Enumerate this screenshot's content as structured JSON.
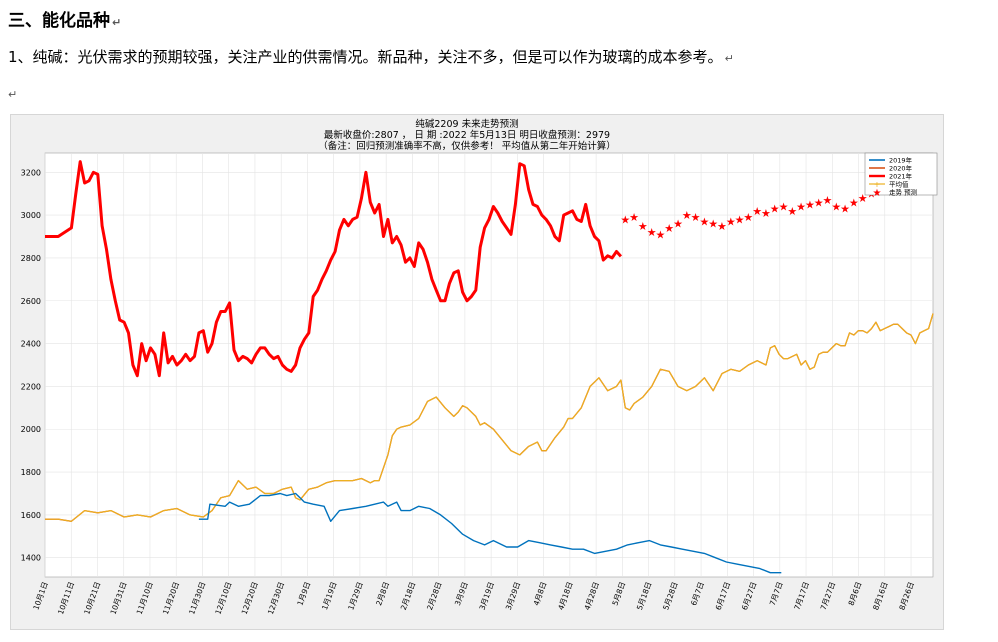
{
  "document": {
    "heading": "三、能化品种",
    "paragraph": "1、纯碱：光伏需求的预期较强，关注产业的供需情况。新品种，关注不多，但是可以作为玻璃的成本参考。",
    "para_mark": "↵"
  },
  "chart_data": {
    "type": "line",
    "title": "纯碱2209     未来走势预测",
    "subtitle": "最新收盘价:2807 ， 日 期 :2022 年5月13日   明日收盘预测：2979",
    "note": "（备注：回归预测准确率不高，仅供参考！ 平均值从第二年开始计算）",
    "ylim": [
      1310,
      3290
    ],
    "yticks": [
      1400,
      1600,
      1800,
      2000,
      2200,
      2400,
      2600,
      2800,
      3000,
      3200
    ],
    "xticks": [
      "10月1日",
      "10月11日",
      "10月21日",
      "10月31日",
      "11月10日",
      "11月20日",
      "11月30日",
      "12月10日",
      "12月20日",
      "12月30日",
      "1月9日",
      "1月19日",
      "1月29日",
      "2月8日",
      "2月18日",
      "2月28日",
      "3月9日",
      "3月19日",
      "3月29日",
      "4月8日",
      "4月18日",
      "4月28日",
      "5月8日",
      "5月18日",
      "5月28日",
      "6月7日",
      "6月17日",
      "6月27日",
      "7月7日",
      "7月17日",
      "7月27日",
      "8月6日",
      "8月16日",
      "8月26日"
    ],
    "legend_position": "top-right",
    "colors": {
      "s2019": "#0072bd",
      "s2020": "#d95319",
      "s2021": "#ff0000",
      "average": "#edb120",
      "forecast": "#ff0000"
    },
    "series": [
      {
        "name": "2019年",
        "x": [
          70,
          74,
          75,
          82,
          84,
          88,
          93,
          98,
          102,
          107,
          110,
          114,
          116,
          118,
          122,
          127,
          130,
          134,
          140,
          146,
          150,
          154,
          156,
          160,
          162,
          166,
          170,
          175,
          180,
          185,
          190,
          195,
          200,
          204,
          210,
          215,
          220,
          225,
          230,
          235,
          240,
          245,
          250,
          255,
          260,
          265,
          270,
          275,
          280,
          285,
          290,
          295,
          300,
          305,
          310,
          315,
          320,
          325,
          330,
          335
        ],
        "values": [
          1580,
          1580,
          1650,
          1640,
          1660,
          1640,
          1650,
          1690,
          1690,
          1700,
          1690,
          1700,
          1680,
          1660,
          1650,
          1640,
          1570,
          1620,
          1630,
          1640,
          1650,
          1660,
          1640,
          1660,
          1620,
          1620,
          1640,
          1630,
          1600,
          1560,
          1510,
          1480,
          1460,
          1480,
          1450,
          1450,
          1480,
          1470,
          1460,
          1450,
          1440,
          1440,
          1420,
          1430,
          1440,
          1460,
          1470,
          1480,
          1460,
          1450,
          1440,
          1430,
          1420,
          1400,
          1380,
          1370,
          1360,
          1350,
          1330,
          1330
        ]
      },
      {
        "name": "2020年",
        "x": [
          0,
          6,
          12,
          18,
          24,
          30,
          36,
          42,
          48,
          54,
          60,
          66,
          72,
          76,
          80,
          84,
          88,
          92,
          96,
          100,
          104,
          108,
          112,
          114,
          116,
          120,
          124,
          128,
          132,
          136,
          140,
          144,
          148,
          150,
          152,
          156,
          158,
          160,
          162,
          166,
          170,
          174,
          178,
          182,
          186,
          188,
          190,
          192,
          196,
          198,
          200,
          204,
          208,
          212,
          216,
          220,
          224,
          226,
          228,
          232,
          236,
          238,
          240,
          244,
          248,
          252,
          256,
          260,
          262,
          264,
          266,
          268,
          272,
          276,
          280,
          284,
          288,
          292,
          296,
          300,
          304,
          308,
          312,
          316,
          320,
          324,
          328,
          330,
          332,
          334,
          336,
          338,
          340,
          342,
          344,
          346,
          348,
          350,
          352,
          354,
          356,
          358,
          360,
          362,
          364,
          366,
          368,
          370,
          372,
          374,
          376,
          378,
          380,
          382,
          384,
          386,
          388,
          390,
          392,
          394,
          396,
          398,
          400,
          402,
          404
        ],
        "values": [
          1580,
          1580,
          1570,
          1620,
          1610,
          1620,
          1590,
          1600,
          1590,
          1620,
          1630,
          1600,
          1590,
          1620,
          1680,
          1690,
          1760,
          1720,
          1730,
          1700,
          1700,
          1720,
          1730,
          1680,
          1670,
          1720,
          1730,
          1750,
          1760,
          1760,
          1760,
          1770,
          1750,
          1760,
          1760,
          1880,
          1970,
          2000,
          2010,
          2020,
          2050,
          2130,
          2150,
          2100,
          2060,
          2080,
          2110,
          2100,
          2060,
          2020,
          2030,
          2000,
          1950,
          1900,
          1880,
          1920,
          1940,
          1900,
          1900,
          1960,
          2010,
          2050,
          2050,
          2100,
          2200,
          2240,
          2180,
          2200,
          2230,
          2100,
          2090,
          2120,
          2150,
          2200,
          2280,
          2270,
          2200,
          2180,
          2200,
          2240,
          2180,
          2260,
          2280,
          2270,
          2300,
          2320,
          2300,
          2380,
          2390,
          2350,
          2330,
          2330,
          2340,
          2350,
          2300,
          2320,
          2280,
          2290,
          2350,
          2360,
          2360,
          2380,
          2400,
          2390,
          2390,
          2450,
          2440,
          2460,
          2460,
          2450,
          2470,
          2500,
          2460,
          2470,
          2480,
          2490,
          2490,
          2470,
          2450,
          2440,
          2400,
          2450,
          2460,
          2470,
          2540
        ]
      },
      {
        "name": "2021年",
        "x": [
          0,
          6,
          12,
          14,
          16,
          18,
          20,
          22,
          24,
          26,
          28,
          30,
          32,
          34,
          36,
          38,
          40,
          42,
          44,
          46,
          48,
          50,
          52,
          54,
          56,
          58,
          60,
          62,
          64,
          66,
          68,
          70,
          72,
          74,
          76,
          78,
          80,
          82,
          84,
          86,
          88,
          90,
          92,
          94,
          96,
          98,
          100,
          102,
          104,
          106,
          108,
          110,
          112,
          114,
          116,
          118,
          120,
          122,
          124,
          126,
          128,
          130,
          132,
          134,
          136,
          138,
          140,
          142,
          144,
          146,
          148,
          150,
          152,
          154,
          156,
          158,
          160,
          162,
          164,
          166,
          168,
          170,
          172,
          174,
          176,
          178,
          180,
          182,
          184,
          186,
          188,
          190,
          192,
          194,
          196,
          198,
          200,
          202,
          204,
          206,
          208,
          210,
          212,
          214,
          216,
          218,
          220,
          222,
          224,
          226,
          228,
          230,
          232,
          234,
          236,
          238,
          240,
          242,
          244,
          246,
          248,
          250,
          252,
          254,
          256,
          258,
          260,
          262
        ],
        "values": [
          2900,
          2900,
          2940,
          3100,
          3250,
          3150,
          3160,
          3200,
          3190,
          2950,
          2840,
          2700,
          2600,
          2510,
          2500,
          2450,
          2300,
          2250,
          2400,
          2320,
          2380,
          2350,
          2250,
          2450,
          2310,
          2340,
          2300,
          2320,
          2350,
          2320,
          2340,
          2450,
          2460,
          2360,
          2400,
          2500,
          2550,
          2550,
          2590,
          2370,
          2320,
          2340,
          2330,
          2310,
          2350,
          2380,
          2380,
          2350,
          2330,
          2340,
          2300,
          2280,
          2270,
          2300,
          2380,
          2420,
          2450,
          2620,
          2650,
          2700,
          2740,
          2790,
          2830,
          2930,
          2980,
          2950,
          2980,
          2990,
          3080,
          3200,
          3060,
          3010,
          3050,
          2900,
          2980,
          2870,
          2900,
          2860,
          2780,
          2800,
          2760,
          2870,
          2840,
          2780,
          2700,
          2650,
          2600,
          2600,
          2680,
          2730,
          2740,
          2640,
          2600,
          2620,
          2650,
          2850,
          2940,
          2980,
          3040,
          3010,
          2970,
          2940,
          2910,
          3050,
          3240,
          3230,
          3120,
          3050,
          3040,
          3000,
          2980,
          2950,
          2900,
          2880,
          3000,
          3010,
          3020,
          2980,
          2970,
          3050,
          2950,
          2900,
          2880,
          2790,
          2810,
          2800,
          2830,
          2807
        ]
      },
      {
        "name": "平均值",
        "x": [
          70,
          74,
          75,
          82,
          84,
          88,
          93,
          98,
          102,
          107,
          110,
          114,
          116,
          118,
          122,
          127,
          130,
          134,
          140,
          146,
          150,
          154,
          156,
          160,
          162,
          166,
          170,
          175,
          180,
          185,
          190,
          195,
          200,
          204,
          210,
          215,
          220,
          225,
          230,
          235,
          240,
          245,
          250,
          255,
          260,
          265,
          270,
          275,
          280,
          285,
          290,
          295,
          300,
          305,
          310,
          315,
          320,
          325,
          330,
          335
        ],
        "values": [
          1580,
          1580,
          1650,
          1640,
          1660,
          1640,
          1650,
          1690,
          1690,
          1700,
          1690,
          1700,
          1680,
          1660,
          1650,
          1640,
          1570,
          1620,
          1630,
          1640,
          1650,
          1660,
          1640,
          1660,
          1620,
          1620,
          1640,
          1630,
          1600,
          1560,
          1510,
          1480,
          1460,
          1480,
          1450,
          1450,
          1480,
          1470,
          1460,
          1450,
          1440,
          1440,
          1420,
          1430,
          1440,
          1460,
          1470,
          1480,
          1460,
          1450,
          1440,
          1430,
          1420,
          1400,
          1380,
          1370,
          1360,
          1350,
          1330,
          1330
        ]
      },
      {
        "name": "走势 预测",
        "x": [
          264,
          268,
          272,
          276,
          280,
          284,
          288,
          292,
          296,
          300,
          304,
          308,
          312,
          316,
          320,
          324,
          328,
          332,
          336,
          340,
          344,
          348,
          352,
          356,
          360,
          364,
          368,
          372,
          376,
          380,
          384,
          388,
          392,
          396,
          400,
          404
        ],
        "values": [
          2979,
          2990,
          2950,
          2920,
          2910,
          2940,
          2960,
          3000,
          2990,
          2970,
          2960,
          2950,
          2970,
          2980,
          2990,
          3020,
          3010,
          3030,
          3040,
          3020,
          3040,
          3050,
          3060,
          3070,
          3040,
          3030,
          3060,
          3080,
          3100,
          3120,
          3140,
          3160,
          3150,
          3130,
          3120,
          3180
        ]
      }
    ]
  }
}
